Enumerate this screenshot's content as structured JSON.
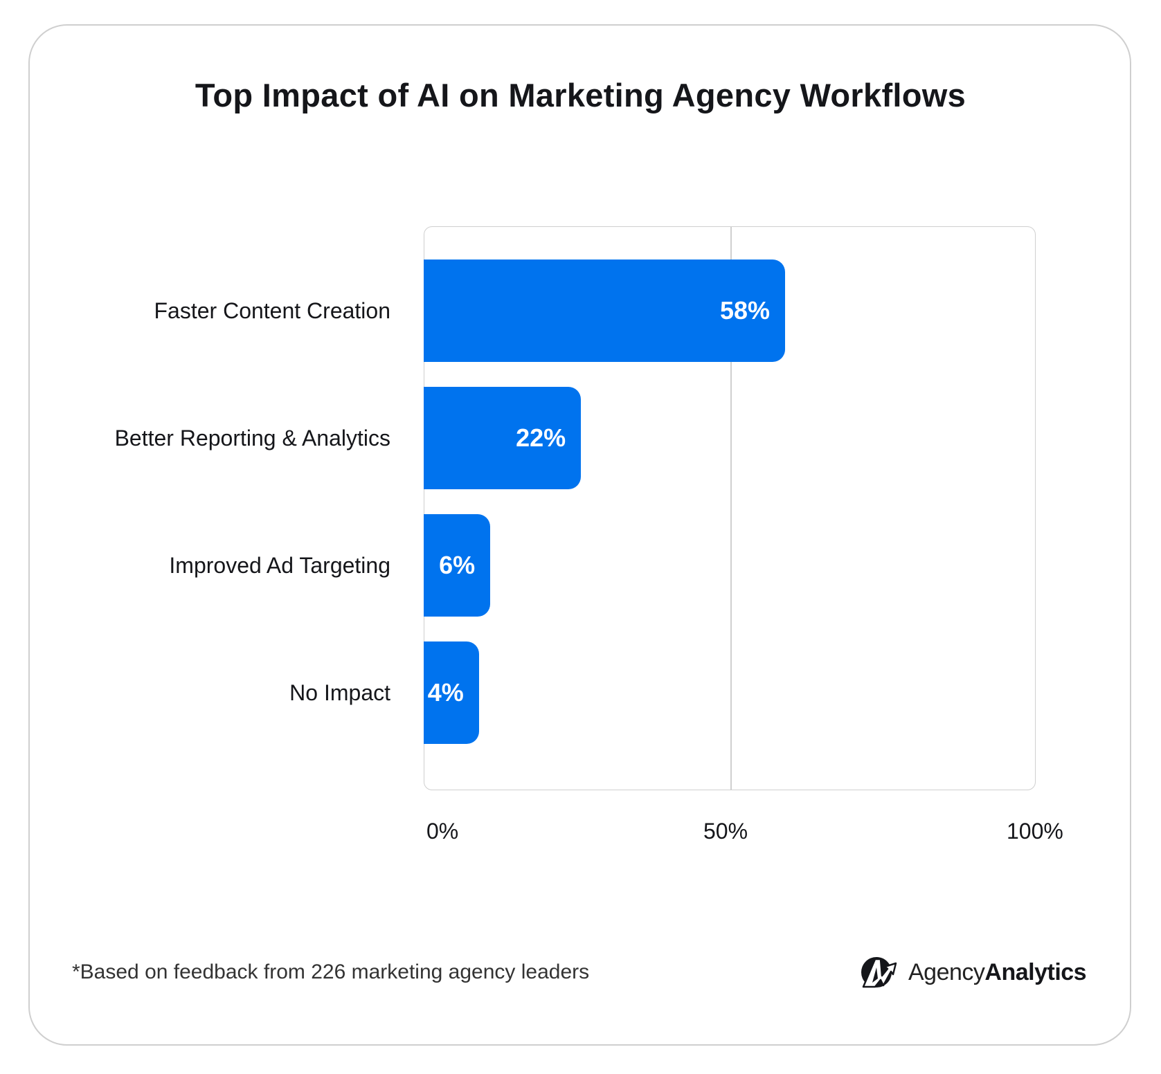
{
  "chart_data": {
    "type": "bar",
    "orientation": "horizontal",
    "title": "Top Impact of AI on Marketing Agency Workflows",
    "categories": [
      "Faster Content Creation",
      "Better Reporting & Analytics",
      "Improved Ad Targeting",
      "No Impact"
    ],
    "values": [
      58,
      22,
      6,
      4
    ],
    "value_labels": [
      "58%",
      "22%",
      "6%",
      "4%"
    ],
    "xlim": [
      0,
      100
    ],
    "x_tick_labels": [
      "0%",
      "50%",
      "100%"
    ],
    "grid": "vertical line at 50%",
    "bar_color": "#0073EE"
  },
  "footnote": "*Based on feedback from 226 marketing agency leaders",
  "logo": {
    "light": "Agency",
    "bold": "Analytics"
  }
}
